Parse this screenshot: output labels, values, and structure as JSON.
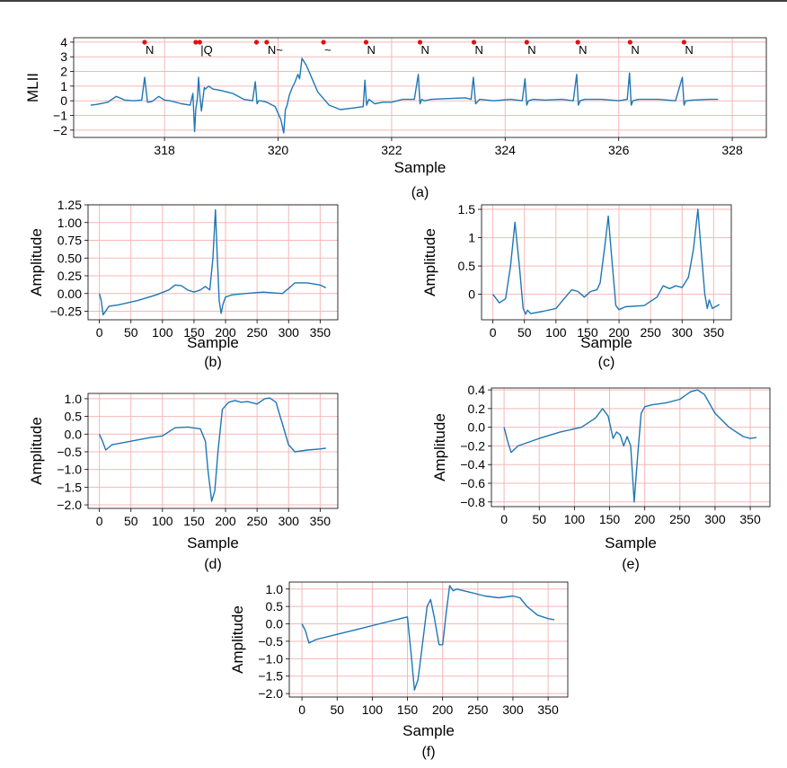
{
  "chart_data": [
    {
      "id": "a",
      "type": "line",
      "caption": "(a)",
      "xlabel": "Sample",
      "ylabel": "MLII",
      "xlim": [
        316.4,
        328.6
      ],
      "ylim": [
        -2.5,
        4.3
      ],
      "xticks": [
        318,
        320,
        322,
        324,
        326,
        328
      ],
      "yticks": [
        -2,
        -1,
        0,
        1,
        2,
        3,
        4
      ],
      "grid": true,
      "line_color": "#1f77b4",
      "grid_color": "#f4b8b8",
      "marker_color": "#e01010",
      "annotations": [
        {
          "x": 317.65,
          "label": "N"
        },
        {
          "x": 318.55,
          "label": ""
        },
        {
          "x": 318.62,
          "label": "|Q"
        },
        {
          "x": 319.62,
          "label": ""
        },
        {
          "x": 319.8,
          "label": "N~"
        },
        {
          "x": 320.8,
          "label": "~"
        },
        {
          "x": 321.55,
          "label": "N"
        },
        {
          "x": 322.5,
          "label": "N"
        },
        {
          "x": 323.45,
          "label": "N"
        },
        {
          "x": 324.38,
          "label": "N"
        },
        {
          "x": 325.28,
          "label": "N"
        },
        {
          "x": 326.2,
          "label": "N"
        },
        {
          "x": 327.15,
          "label": "N"
        }
      ],
      "x": [
        316.7,
        316.8,
        317.0,
        317.15,
        317.3,
        317.45,
        317.6,
        317.65,
        317.7,
        317.78,
        317.9,
        318.0,
        318.1,
        318.3,
        318.45,
        318.5,
        318.53,
        318.55,
        318.58,
        318.6,
        318.62,
        318.65,
        318.7,
        318.72,
        318.78,
        318.85,
        319.0,
        319.2,
        319.4,
        319.55,
        319.6,
        319.63,
        319.66,
        319.7,
        319.8,
        319.95,
        320.05,
        320.1,
        320.13,
        320.16,
        320.2,
        320.25,
        320.3,
        320.35,
        320.38,
        320.42,
        320.5,
        320.6,
        320.7,
        320.9,
        321.1,
        321.3,
        321.5,
        321.53,
        321.56,
        321.6,
        321.7,
        321.85,
        322.0,
        322.2,
        322.4,
        322.47,
        322.5,
        322.53,
        322.58,
        322.7,
        323.0,
        323.3,
        323.4,
        323.44,
        323.48,
        323.55,
        323.8,
        324.1,
        324.3,
        324.35,
        324.38,
        324.41,
        324.5,
        324.7,
        325.0,
        325.2,
        325.26,
        325.29,
        325.32,
        325.4,
        325.7,
        326.0,
        326.15,
        326.19,
        326.22,
        326.25,
        326.35,
        326.7,
        327.0,
        327.12,
        327.15,
        327.18,
        327.3,
        327.6,
        327.75
      ],
      "y": [
        -0.3,
        -0.25,
        -0.1,
        0.3,
        0.05,
        0.0,
        0.05,
        1.6,
        -0.1,
        -0.05,
        0.3,
        0.05,
        0.0,
        -0.2,
        -0.3,
        0.5,
        -2.1,
        -0.6,
        0.2,
        1.6,
        0.5,
        -0.7,
        0.9,
        0.8,
        1.0,
        0.8,
        0.7,
        0.5,
        0.1,
        0.0,
        1.3,
        -0.2,
        0.0,
        0.0,
        -0.1,
        -0.4,
        -1.3,
        -2.2,
        -0.6,
        -0.3,
        0.4,
        0.9,
        1.3,
        1.8,
        1.5,
        2.9,
        2.4,
        1.5,
        0.6,
        -0.3,
        -0.6,
        -0.5,
        -0.4,
        1.4,
        -0.3,
        0.1,
        -0.2,
        -0.1,
        -0.1,
        0.1,
        0.1,
        1.8,
        -0.2,
        0.1,
        0.0,
        0.1,
        0.15,
        0.2,
        0.1,
        1.6,
        -0.2,
        0.1,
        0.0,
        0.1,
        0.0,
        1.5,
        -0.3,
        0.0,
        0.1,
        0.05,
        0.1,
        0.0,
        1.8,
        -0.3,
        0.0,
        0.1,
        0.1,
        0.0,
        0.1,
        1.9,
        -0.3,
        0.0,
        0.1,
        0.1,
        0.0,
        1.6,
        -0.3,
        0.0,
        0.05,
        0.1,
        0.1
      ]
    },
    {
      "id": "b",
      "type": "line",
      "caption": "(b)",
      "xlabel": "Sample",
      "ylabel": "Amplitude",
      "xlim": [
        -18,
        378
      ],
      "ylim": [
        -0.37,
        1.25
      ],
      "xticks": [
        0,
        50,
        100,
        150,
        200,
        250,
        300,
        350
      ],
      "yticks": [
        -0.25,
        0.0,
        0.25,
        0.5,
        0.75,
        1.0,
        1.25
      ],
      "ytick_labels": [
        "−0.25",
        "0.00",
        "0.25",
        "0.50",
        "0.75",
        "1.00",
        "1.25"
      ],
      "grid": true,
      "x": [
        0,
        3,
        6,
        9,
        15,
        30,
        60,
        90,
        110,
        120,
        130,
        140,
        150,
        160,
        168,
        175,
        180,
        184,
        187,
        190,
        193,
        196,
        200,
        210,
        230,
        260,
        290,
        300,
        310,
        330,
        350,
        359
      ],
      "y": [
        0.0,
        -0.1,
        -0.3,
        -0.26,
        -0.18,
        -0.16,
        -0.1,
        -0.02,
        0.05,
        0.12,
        0.11,
        0.05,
        0.02,
        0.05,
        0.1,
        0.05,
        0.5,
        1.18,
        0.5,
        -0.1,
        -0.28,
        -0.15,
        -0.05,
        -0.02,
        0.0,
        0.02,
        0.0,
        0.07,
        0.15,
        0.15,
        0.12,
        0.08
      ]
    },
    {
      "id": "c",
      "type": "line",
      "caption": "(c)",
      "xlabel": "Sample",
      "ylabel": "Amplitude",
      "xlim": [
        -18,
        378
      ],
      "ylim": [
        -0.45,
        1.58
      ],
      "xticks": [
        0,
        50,
        100,
        150,
        200,
        250,
        300,
        350
      ],
      "yticks": [
        0.0,
        0.5,
        1.0,
        1.5
      ],
      "grid": true,
      "x": [
        0,
        10,
        20,
        28,
        35,
        42,
        48,
        52,
        55,
        60,
        80,
        100,
        115,
        125,
        135,
        145,
        155,
        165,
        170,
        178,
        183,
        188,
        195,
        200,
        210,
        240,
        260,
        270,
        280,
        290,
        300,
        310,
        318,
        325,
        330,
        336,
        340,
        343,
        348,
        359
      ],
      "y": [
        0.0,
        -0.15,
        -0.08,
        0.5,
        1.27,
        0.5,
        -0.25,
        -0.35,
        -0.28,
        -0.34,
        -0.3,
        -0.25,
        -0.05,
        0.08,
        0.05,
        -0.05,
        0.05,
        0.08,
        0.2,
        0.9,
        1.38,
        0.7,
        -0.2,
        -0.27,
        -0.22,
        -0.2,
        -0.05,
        0.15,
        0.1,
        0.15,
        0.12,
        0.3,
        0.8,
        1.5,
        0.8,
        0.0,
        -0.25,
        -0.1,
        -0.25,
        -0.18
      ]
    },
    {
      "id": "d",
      "type": "line",
      "caption": "(d)",
      "xlabel": "Sample",
      "ylabel": "Amplitude",
      "xlim": [
        -18,
        378
      ],
      "ylim": [
        -2.1,
        1.15
      ],
      "xticks": [
        0,
        50,
        100,
        150,
        200,
        250,
        300,
        350
      ],
      "yticks": [
        -2.0,
        -1.5,
        -1.0,
        -0.5,
        0.0,
        0.5,
        1.0
      ],
      "ytick_labels": [
        "−2.0",
        "−1.5",
        "−1.0",
        "−0.5",
        "0.0",
        "0.5",
        "1.0"
      ],
      "grid": true,
      "x": [
        0,
        5,
        10,
        20,
        50,
        80,
        100,
        120,
        140,
        160,
        168,
        172,
        178,
        183,
        188,
        195,
        205,
        215,
        225,
        235,
        250,
        262,
        270,
        280,
        290,
        300,
        310,
        330,
        350,
        359
      ],
      "y": [
        0.0,
        -0.2,
        -0.45,
        -0.3,
        -0.2,
        -0.1,
        -0.05,
        0.18,
        0.2,
        0.15,
        -0.2,
        -1.0,
        -1.9,
        -1.6,
        -0.5,
        0.7,
        0.9,
        0.95,
        0.9,
        0.92,
        0.85,
        1.0,
        1.02,
        0.9,
        0.3,
        -0.3,
        -0.5,
        -0.45,
        -0.42,
        -0.4
      ]
    },
    {
      "id": "e",
      "type": "line",
      "caption": "(e)",
      "xlabel": "Sample",
      "ylabel": "Amplitude",
      "xlim": [
        -18,
        378
      ],
      "ylim": [
        -0.85,
        0.42
      ],
      "xticks": [
        0,
        50,
        100,
        150,
        200,
        250,
        300,
        350
      ],
      "yticks": [
        -0.8,
        -0.6,
        -0.4,
        -0.2,
        0.0,
        0.2,
        0.4
      ],
      "ytick_labels": [
        "−0.8",
        "−0.6",
        "−0.4",
        "−0.2",
        "0.0",
        "0.2",
        "0.4"
      ],
      "grid": true,
      "x": [
        0,
        5,
        10,
        20,
        50,
        80,
        110,
        130,
        140,
        148,
        155,
        160,
        165,
        170,
        175,
        180,
        185,
        190,
        195,
        200,
        210,
        230,
        250,
        265,
        275,
        285,
        300,
        320,
        340,
        350,
        359
      ],
      "y": [
        0.0,
        -0.15,
        -0.27,
        -0.2,
        -0.12,
        -0.05,
        0.0,
        0.1,
        0.2,
        0.12,
        -0.12,
        -0.05,
        -0.08,
        -0.2,
        -0.1,
        -0.2,
        -0.8,
        -0.3,
        0.15,
        0.22,
        0.24,
        0.26,
        0.3,
        0.38,
        0.4,
        0.35,
        0.15,
        0.0,
        -0.1,
        -0.12,
        -0.11
      ]
    },
    {
      "id": "f",
      "type": "line",
      "caption": "(f)",
      "xlabel": "Sample",
      "ylabel": "Amplitude",
      "xlim": [
        -18,
        378
      ],
      "ylim": [
        -2.1,
        1.2
      ],
      "xticks": [
        0,
        50,
        100,
        150,
        200,
        250,
        300,
        350
      ],
      "yticks": [
        -2.0,
        -1.5,
        -1.0,
        -0.5,
        0.0,
        0.5,
        1.0
      ],
      "ytick_labels": [
        "−2.0",
        "−1.5",
        "−1.0",
        "−0.5",
        "0.0",
        "0.5",
        "1.0"
      ],
      "grid": true,
      "x": [
        0,
        5,
        10,
        20,
        50,
        80,
        110,
        140,
        150,
        155,
        160,
        165,
        170,
        178,
        183,
        188,
        195,
        200,
        205,
        210,
        215,
        220,
        240,
        260,
        280,
        300,
        310,
        320,
        335,
        350,
        359
      ],
      "y": [
        0.0,
        -0.2,
        -0.55,
        -0.45,
        -0.3,
        -0.15,
        0.0,
        0.15,
        0.2,
        -0.8,
        -1.9,
        -1.6,
        -0.8,
        0.5,
        0.7,
        0.2,
        -0.6,
        -0.6,
        0.3,
        1.1,
        0.95,
        1.0,
        0.9,
        0.8,
        0.75,
        0.8,
        0.75,
        0.5,
        0.25,
        0.15,
        0.12
      ]
    }
  ]
}
